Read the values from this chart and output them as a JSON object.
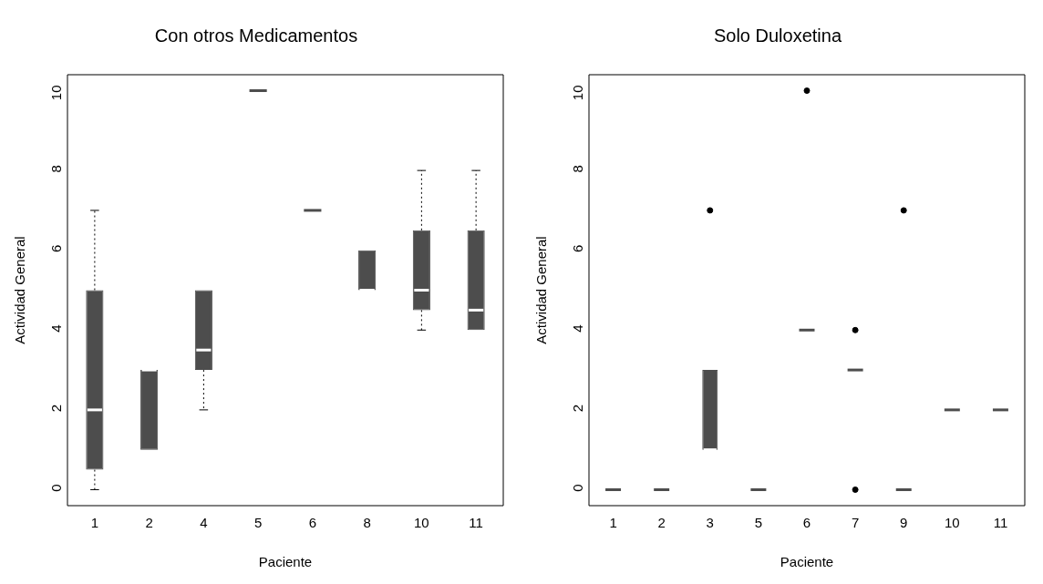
{
  "chart_data": [
    {
      "type": "box",
      "title": "Con otros Medicamentos",
      "xlabel": "Paciente",
      "ylabel": "Actividad General",
      "color": "#4d4d4d",
      "grid": false,
      "ylim": [
        -0.4,
        10.4
      ],
      "yticks": [
        0,
        2,
        4,
        6,
        8,
        10
      ],
      "categories": [
        "1",
        "2",
        "4",
        "5",
        "6",
        "8",
        "10",
        "11"
      ],
      "boxes": [
        {
          "low": 0,
          "q1": 0.5,
          "median": 2,
          "q3": 5,
          "high": 7
        },
        {
          "low": 1,
          "q1": 1,
          "median": 3,
          "q3": 3,
          "high": 3
        },
        {
          "low": 2,
          "q1": 3,
          "median": 3.5,
          "q3": 5,
          "high": 5
        },
        {
          "low": 10,
          "q1": 10,
          "median": 10,
          "q3": 10,
          "high": 10
        },
        {
          "low": 7,
          "q1": 7,
          "median": 7,
          "q3": 7,
          "high": 7
        },
        {
          "low": 5,
          "q1": 5,
          "median": 5,
          "q3": 6,
          "high": 6
        },
        {
          "low": 4,
          "q1": 4.5,
          "median": 5,
          "q3": 6.5,
          "high": 8
        },
        {
          "low": 4,
          "q1": 4,
          "median": 4.5,
          "q3": 6.5,
          "high": 8
        }
      ]
    },
    {
      "type": "box",
      "title": "Solo Duloxetina",
      "xlabel": "Paciente",
      "ylabel": "Actividad General",
      "color": "#4d4d4d",
      "grid": false,
      "ylim": [
        -0.4,
        10.4
      ],
      "yticks": [
        0,
        2,
        4,
        6,
        8,
        10
      ],
      "categories": [
        "1",
        "2",
        "3",
        "5",
        "6",
        "7",
        "9",
        "10",
        "11"
      ],
      "boxes": [
        {
          "low": 0,
          "q1": 0,
          "median": 0,
          "q3": 0,
          "high": 0
        },
        {
          "low": 0,
          "q1": 0,
          "median": 0,
          "q3": 0,
          "high": 0
        },
        {
          "low": 1,
          "q1": 1,
          "median": 1,
          "q3": 3,
          "high": 3,
          "outliers": [
            7
          ]
        },
        {
          "low": 0,
          "q1": 0,
          "median": 0,
          "q3": 0,
          "high": 0
        },
        {
          "low": 4,
          "q1": 4,
          "median": 4,
          "q3": 4,
          "high": 4,
          "outliers": [
            10
          ]
        },
        {
          "low": 3,
          "q1": 3,
          "median": 3,
          "q3": 3,
          "high": 3,
          "outliers": [
            4,
            0
          ]
        },
        {
          "low": 0,
          "q1": 0,
          "median": 0,
          "q3": 0,
          "high": 0,
          "outliers": [
            7
          ]
        },
        {
          "low": 2,
          "q1": 2,
          "median": 2,
          "q3": 2,
          "high": 2
        },
        {
          "low": 2,
          "q1": 2,
          "median": 2,
          "q3": 2,
          "high": 2
        }
      ]
    }
  ]
}
